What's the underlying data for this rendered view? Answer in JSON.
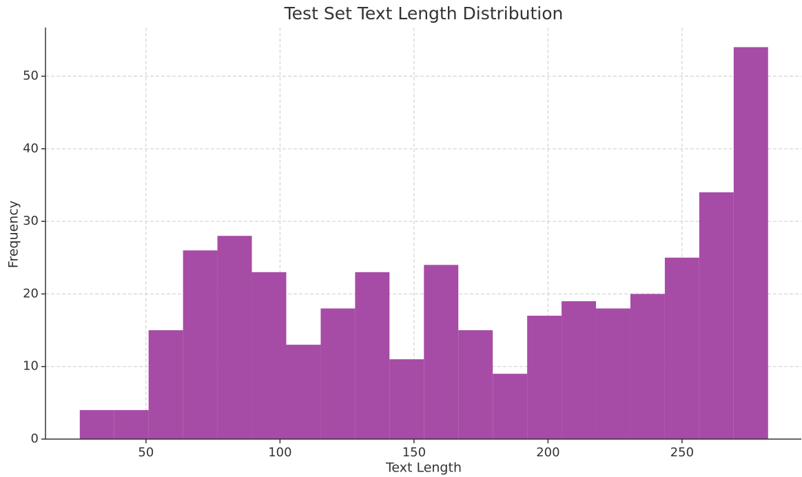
{
  "chart_data": {
    "type": "histogram",
    "title": "Test Set Text Length Distribution",
    "x_label": "Text Length",
    "y_label": "Frequency",
    "bins": [
      25.3,
      38.14,
      50.98,
      63.82,
      76.66,
      89.5,
      102.34,
      115.18,
      128.02,
      140.86,
      153.7,
      166.54,
      179.38,
      192.22,
      205.06,
      217.9,
      230.74,
      243.58,
      256.42,
      269.26,
      282.1
    ],
    "values": [
      4,
      4,
      15,
      26,
      28,
      23,
      13,
      18,
      23,
      11,
      24,
      15,
      9,
      17,
      19,
      18,
      20,
      25,
      34,
      54
    ],
    "color": "#a64ca6",
    "xlim": [
      12.5,
      294.5
    ],
    "xticks": [
      50,
      100,
      150,
      200,
      250
    ],
    "ylim": [
      0,
      56.7
    ],
    "yticks": [
      0,
      10,
      20,
      30,
      40,
      50
    ],
    "grid": true
  }
}
